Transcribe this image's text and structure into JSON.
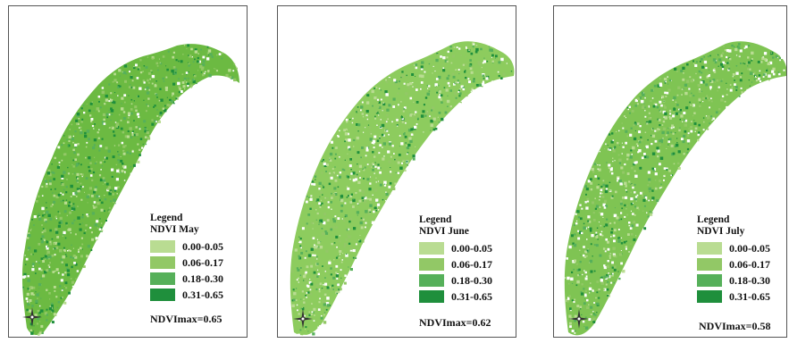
{
  "legend_classes": [
    {
      "range": "0.00-0.05",
      "color": "#b9dc92"
    },
    {
      "range": "0.06-0.17",
      "color": "#92c866"
    },
    {
      "range": "0.18-0.30",
      "color": "#56b05a"
    },
    {
      "range": "0.31-0.65",
      "color": "#1f8f3c"
    }
  ],
  "panels": [
    {
      "legend_title": "Legend",
      "legend_subtitle": "NDVI May",
      "ndvimax_label": "NDVImax=0.65",
      "vegetation_color": "#6cba42"
    },
    {
      "legend_title": "Legend",
      "legend_subtitle": "NDVI June",
      "ndvimax_label": "NDVImax=0.62",
      "vegetation_color": "#8dcc5e"
    },
    {
      "legend_title": "Legend",
      "legend_subtitle": "NDVI July",
      "ndvimax_label": "NDVImax=0.58",
      "vegetation_color": "#7fc453"
    }
  ],
  "north_arrow_icon": "compass-rose-icon"
}
